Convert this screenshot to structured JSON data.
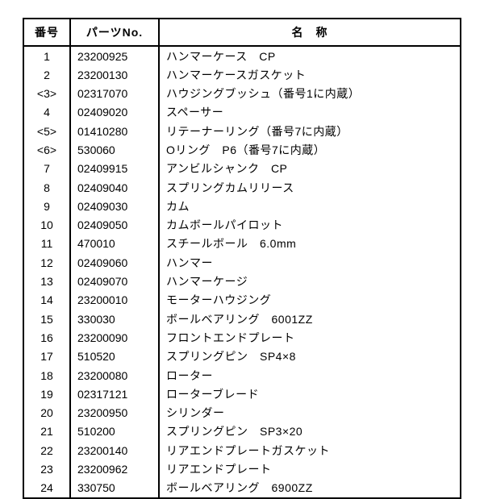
{
  "table": {
    "headers": {
      "num": "番号",
      "part": "パーツNo.",
      "name": "名　称"
    },
    "rows": [
      {
        "num": "1",
        "part": "23200925",
        "name": "ハンマーケース　CP"
      },
      {
        "num": "2",
        "part": "23200130",
        "name": "ハンマーケースガスケット"
      },
      {
        "num": "<3>",
        "part": "02317070",
        "name": "ハウジングブッシュ（番号1に内蔵）"
      },
      {
        "num": "4",
        "part": "02409020",
        "name": "スペーサー"
      },
      {
        "num": "<5>",
        "part": "01410280",
        "name": "リテーナーリング（番号7に内蔵）"
      },
      {
        "num": "<6>",
        "part": "530060",
        "name": "Oリング　P6（番号7に内蔵）"
      },
      {
        "num": "7",
        "part": "02409915",
        "name": "アンビルシャンク　CP"
      },
      {
        "num": "8",
        "part": "02409040",
        "name": "スプリングカムリリース"
      },
      {
        "num": "9",
        "part": "02409030",
        "name": "カム"
      },
      {
        "num": "10",
        "part": "02409050",
        "name": "カムボールパイロット"
      },
      {
        "num": "11",
        "part": "470010",
        "name": "スチールボール　6.0mm"
      },
      {
        "num": "12",
        "part": "02409060",
        "name": "ハンマー"
      },
      {
        "num": "13",
        "part": "02409070",
        "name": "ハンマーケージ"
      },
      {
        "num": "14",
        "part": "23200010",
        "name": "モーターハウジング"
      },
      {
        "num": "15",
        "part": "330030",
        "name": "ボールベアリング　6001ZZ"
      },
      {
        "num": "16",
        "part": "23200090",
        "name": "フロントエンドプレート"
      },
      {
        "num": "17",
        "part": "510520",
        "name": "スプリングピン　SP4×8"
      },
      {
        "num": "18",
        "part": "23200080",
        "name": "ローター"
      },
      {
        "num": "19",
        "part": "02317121",
        "name": "ローターブレード"
      },
      {
        "num": "20",
        "part": "23200950",
        "name": "シリンダー"
      },
      {
        "num": "21",
        "part": "510200",
        "name": "スプリングピン　SP3×20"
      },
      {
        "num": "22",
        "part": "23200140",
        "name": "リアエンドプレートガスケット"
      },
      {
        "num": "23",
        "part": "23200962",
        "name": "リアエンドプレート"
      },
      {
        "num": "24",
        "part": "330750",
        "name": "ボールベアリング　6900ZZ"
      }
    ]
  }
}
